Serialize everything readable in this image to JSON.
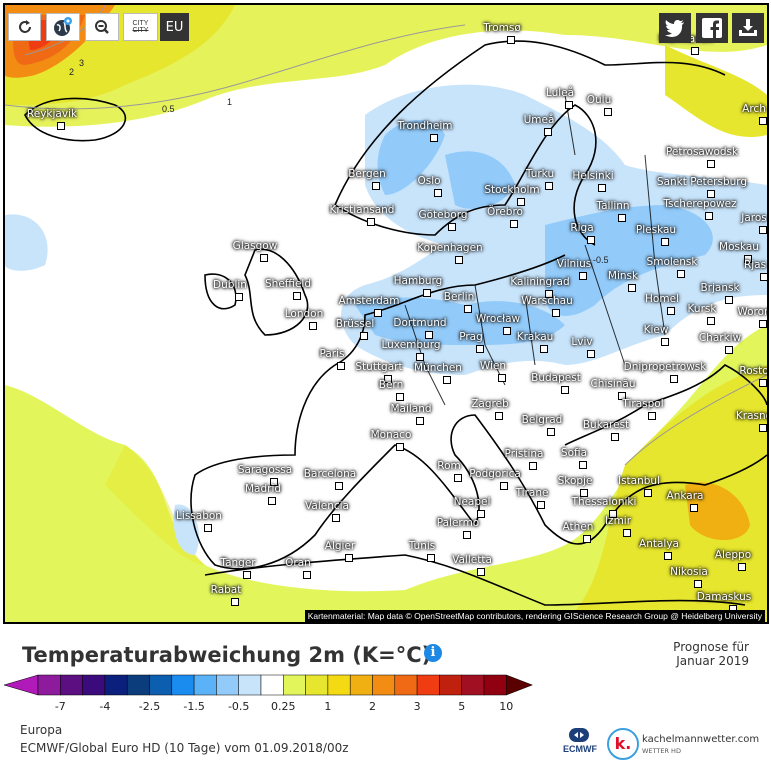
{
  "toolbar": {
    "reload": "reload-icon",
    "globe": "globe-pin-icon",
    "zoom_out": "zoom-out-icon",
    "city_toggle_top": "CITY",
    "city_toggle_bottom": "CITY",
    "region_button": "EU"
  },
  "social": {
    "twitter": "twitter-icon",
    "facebook": "facebook-icon",
    "download": "download-icon"
  },
  "map": {
    "cities": [
      "Tromsø",
      "Murmansk",
      "Reykjavik",
      "Luleå",
      "Oulu",
      "Arch",
      "Trondheim",
      "Umeå",
      "Petrosawodsk",
      "Bergen",
      "Oslo",
      "Turku",
      "Helsinki",
      "Sankt Petersburg",
      "Stockholm",
      "Kristiansand",
      "Göteborg",
      "Örebro",
      "Tallinn",
      "Tscherepowez",
      "Jaros",
      "Riga",
      "Pleskau",
      "Glasgow",
      "Kopenhagen",
      "Moskau",
      "Vilnius",
      "Smolensk",
      "Rjas",
      "Kaliningrad",
      "Minsk",
      "Dublin",
      "Sheffield",
      "Hamburg",
      "Brjansk",
      "Amsterdam",
      "Berlin",
      "Warschau",
      "Homel",
      "Kursk",
      "Woron",
      "London",
      "Brüssel",
      "Dortmund",
      "Wrocław",
      "Kiew",
      "Charkiw",
      "Prag",
      "Krakau",
      "Lviv",
      "Paris",
      "Luxemburg",
      "Stuttgart",
      "München",
      "Wien",
      "Dnipropetrowsk",
      "Rosto",
      "Chisinău",
      "Budapest",
      "Bern",
      "Tiraspol",
      "Mailand",
      "Zagreb",
      "Krasno",
      "Belgrad",
      "Bukarest",
      "Monaco",
      "Pristina",
      "Sofia",
      "Saragossa",
      "Barcelona",
      "Rom",
      "Podgorica",
      "Istanbul",
      "Skopje",
      "Madrid",
      "Tirane",
      "Ankara",
      "Thessaloniki",
      "Neapel",
      "Valencia",
      "Lissabon",
      "Izmir",
      "Palermo",
      "Athen",
      "Algier",
      "Tunis",
      "Antalya",
      "Aleppo",
      "Tanger",
      "Oran",
      "Valletta",
      "Nikosia",
      "Rabat",
      "Damaskus"
    ],
    "contour_labels": [
      "3",
      "2",
      "1",
      "0.5",
      "-0.5"
    ],
    "attribution": "Kartenmaterial: Map data © OpenStreetMap contributors, rendering GIScience Research Group @ Heidelberg University"
  },
  "header": {
    "title": "Temperaturabweichung 2m (K=°C)",
    "info": "i",
    "forecast_line1": "Prognose für",
    "forecast_line2": "Januar 2019"
  },
  "legend": {
    "colors": [
      "#8e1a9c",
      "#5c0f80",
      "#3b0a7c",
      "#0b1f7c",
      "#0b3d7c",
      "#0c5eae",
      "#1a8cf0",
      "#5cb2f6",
      "#92caf9",
      "#c8e4fb",
      "#ffffff",
      "#e2f65c",
      "#e6e62e",
      "#f4da12",
      "#f0b012",
      "#f28c12",
      "#f06a16",
      "#f03c12",
      "#c0200e",
      "#a01022",
      "#900010"
    ],
    "low_arrow_color": "#b01ab8",
    "high_arrow_color": "#5a0000",
    "ticks": [
      "-7",
      "-4",
      "-2.5",
      "-1.5",
      "-0.5",
      "0.25",
      "1",
      "2",
      "3",
      "5",
      "10"
    ]
  },
  "footer": {
    "region": "Europa",
    "model": "ECMWF/Global Euro HD (10 Tage) vom 01.09.2018/00z",
    "ecmwf_label": "ECMWF",
    "brand_letter": "k.",
    "brand_name": "kachelmannwetter.com",
    "brand_sub": "WETTER HD"
  }
}
